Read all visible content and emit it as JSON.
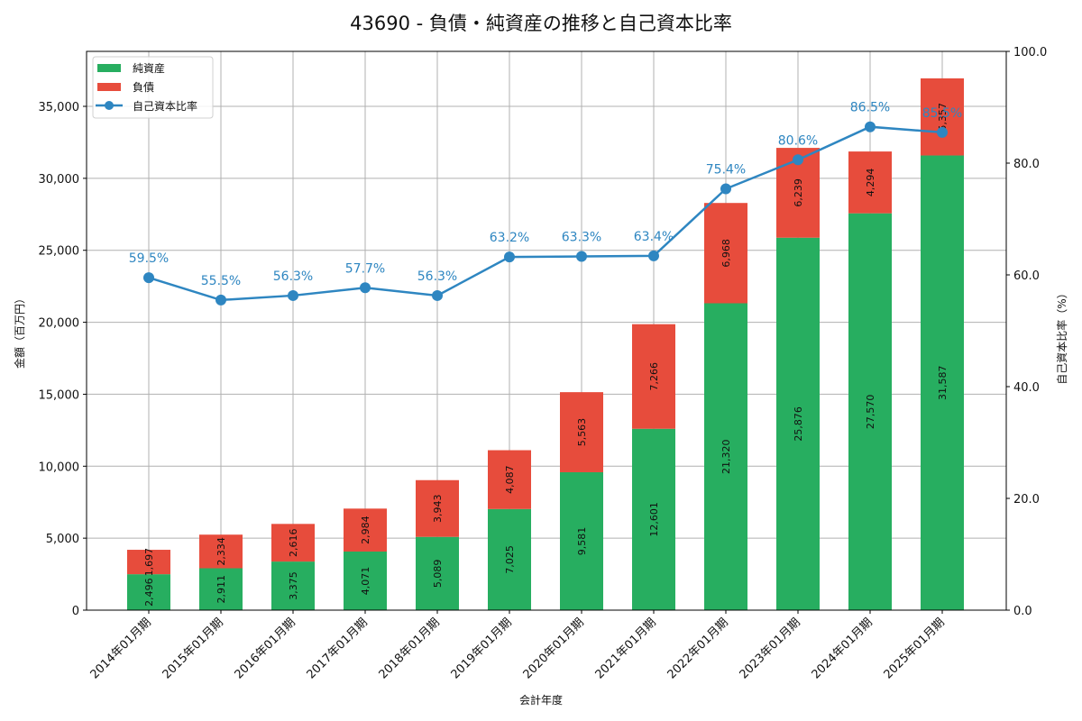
{
  "title": "43690 - 負債・純資産の推移と自己資本比率",
  "chart_data": {
    "type": "bar",
    "subtype": "stacked-bar-with-line",
    "title": "43690 - 負債・純資産の推移と自己資本比率",
    "xlabel": "会計年度",
    "ylabel": "金額（百万円）",
    "y2label": "自己資本比率（%）",
    "ylim": [
      0,
      38820
    ],
    "y2lim": [
      0,
      100
    ],
    "yticks": [
      0,
      5000,
      10000,
      15000,
      20000,
      25000,
      30000,
      35000
    ],
    "ytick_labels": [
      "0",
      "5,000",
      "10,000",
      "15,000",
      "20,000",
      "25,000",
      "30,000",
      "35,000"
    ],
    "y2ticks": [
      0,
      20,
      40,
      60,
      80,
      100
    ],
    "y2tick_labels": [
      "0.0",
      "20.0",
      "40.0",
      "60.0",
      "80.0",
      "100.0"
    ],
    "grid": true,
    "legend_position": "upper left",
    "categories": [
      "2014年01月期",
      "2015年01月期",
      "2016年01月期",
      "2017年01月期",
      "2018年01月期",
      "2019年01月期",
      "2020年01月期",
      "2021年01月期",
      "2022年01月期",
      "2023年01月期",
      "2024年01月期",
      "2025年01月期"
    ],
    "series": [
      {
        "name": "純資産",
        "type": "bar",
        "color": "#27ae60",
        "values": [
          2496,
          2911,
          3375,
          4071,
          5089,
          7025,
          9581,
          12601,
          21320,
          25876,
          27570,
          31587
        ],
        "labels": [
          "2,496",
          "2,911",
          "3,375",
          "4,071",
          "5,089",
          "7,025",
          "9,581",
          "12,601",
          "21,320",
          "25,876",
          "27,570",
          "31,587"
        ]
      },
      {
        "name": "負債",
        "type": "bar",
        "color": "#e74c3c",
        "values": [
          1697,
          2334,
          2616,
          2984,
          3943,
          4087,
          5563,
          7266,
          6968,
          6239,
          4294,
          5357
        ],
        "labels": [
          "1,697",
          "2,334",
          "2,616",
          "2,984",
          "3,943",
          "4,087",
          "5,563",
          "7,266",
          "6,968",
          "6,239",
          "4,294",
          "5,357"
        ]
      },
      {
        "name": "自己資本比率",
        "type": "line",
        "axis": "right",
        "color": "#2e86c1",
        "values": [
          59.5,
          55.5,
          56.3,
          57.7,
          56.3,
          63.2,
          63.3,
          63.4,
          75.4,
          80.6,
          86.5,
          85.5
        ],
        "labels": [
          "59.5%",
          "55.5%",
          "56.3%",
          "57.7%",
          "56.3%",
          "63.2%",
          "63.3%",
          "63.4%",
          "75.4%",
          "80.6%",
          "86.5%",
          "85.5%"
        ]
      }
    ]
  },
  "legend": {
    "items": [
      {
        "label": "純資産",
        "color": "#27ae60",
        "kind": "bar"
      },
      {
        "label": "負債",
        "color": "#e74c3c",
        "kind": "bar"
      },
      {
        "label": "自己資本比率",
        "color": "#2e86c1",
        "kind": "line"
      }
    ]
  }
}
